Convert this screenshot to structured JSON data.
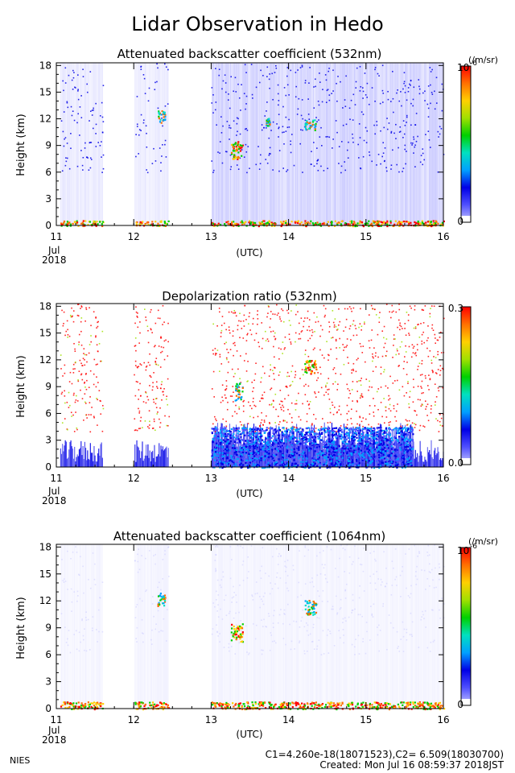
{
  "figure": {
    "title": "Lidar Observation in Hedo",
    "footer_left": "NIES",
    "footer_calib": "C1=4.260e-18(18071523),C2= 6.509(18030700)",
    "footer_created": "Created: Mon Jul 16 08:59:37 2018JST"
  },
  "colors": {
    "scale": [
      "#ffffff",
      "#c8c8ff",
      "#5050ff",
      "#0000e6",
      "#00a0ff",
      "#00e0c0",
      "#00d000",
      "#a0e000",
      "#ffd000",
      "#ff7000",
      "#ff0000"
    ],
    "frame": "#000000"
  },
  "chart_data": [
    {
      "type": "heatmap",
      "title": "Attenuated backscatter coefficient (532nm)",
      "ylabel": "Height (km)",
      "xlabel": "(UTC)",
      "x_ticks": [
        "11",
        "12",
        "13",
        "14",
        "15",
        "16"
      ],
      "x_sub_label": "Jul",
      "x_year_label": "2018",
      "xlim": [
        11,
        16
      ],
      "y_ticks": [
        "0",
        "3",
        "6",
        "9",
        "12",
        "15",
        "18"
      ],
      "ylim": [
        0,
        18.3
      ],
      "colorbar": {
        "min_label": "0",
        "max_label": "10",
        "unit": "(/m/sr)",
        "max_superscript": "-6"
      },
      "data_gaps": [
        [
          11.6,
          12.0
        ],
        [
          12.45,
          13.0
        ]
      ],
      "features": [
        {
          "name": "surface layer",
          "x": [
            11.05,
            16.0
          ],
          "y": [
            0,
            0.6
          ],
          "level": "high"
        },
        {
          "name": "cloud",
          "x": [
            13.25,
            13.4
          ],
          "y": [
            7.5,
            9.5
          ],
          "level": "high"
        },
        {
          "name": "cloud",
          "x": [
            14.2,
            14.35
          ],
          "y": [
            10.8,
            12.0
          ],
          "level": "medium"
        },
        {
          "name": "cloud",
          "x": [
            12.3,
            12.4
          ],
          "y": [
            11.5,
            13.0
          ],
          "level": "medium"
        },
        {
          "name": "cloud",
          "x": [
            13.7,
            13.75
          ],
          "y": [
            11.3,
            12.1
          ],
          "level": "medium"
        }
      ]
    },
    {
      "type": "heatmap",
      "title": "Depolarization ratio (532nm)",
      "ylabel": "Height (km)",
      "xlabel": "(UTC)",
      "x_ticks": [
        "11",
        "12",
        "13",
        "14",
        "15",
        "16"
      ],
      "x_sub_label": "Jul",
      "x_year_label": "2018",
      "xlim": [
        11,
        16
      ],
      "y_ticks": [
        "0",
        "3",
        "6",
        "9",
        "12",
        "15",
        "18"
      ],
      "ylim": [
        0,
        18.3
      ],
      "colorbar": {
        "min_label": "0.0",
        "max_label": "0.3"
      },
      "data_gaps": [
        [
          11.6,
          12.0
        ],
        [
          12.45,
          13.0
        ]
      ],
      "features": [
        {
          "name": "low depolarization layer",
          "x": [
            13.0,
            15.6
          ],
          "y": [
            0,
            4.5
          ],
          "level": "low"
        },
        {
          "name": "cloud",
          "x": [
            14.2,
            14.35
          ],
          "y": [
            10.5,
            12.0
          ],
          "level": "high"
        },
        {
          "name": "cloud",
          "x": [
            13.3,
            13.4
          ],
          "y": [
            7.5,
            9.5
          ],
          "level": "medium"
        }
      ]
    },
    {
      "type": "heatmap",
      "title": "Attenuated backscatter coefficient (1064nm)",
      "ylabel": "Height (km)",
      "xlabel": "(UTC)",
      "x_ticks": [
        "11",
        "12",
        "13",
        "14",
        "15",
        "16"
      ],
      "x_sub_label": "Jul",
      "x_year_label": "2018",
      "xlim": [
        11,
        16
      ],
      "y_ticks": [
        "0",
        "3",
        "6",
        "9",
        "12",
        "15",
        "18"
      ],
      "ylim": [
        0,
        18.3
      ],
      "colorbar": {
        "min_label": "0",
        "max_label": "10",
        "unit": "(/m/sr)",
        "max_superscript": "-6"
      },
      "data_gaps": [
        [
          11.6,
          12.0
        ],
        [
          12.45,
          13.0
        ]
      ],
      "features": [
        {
          "name": "surface layer",
          "x": [
            11.05,
            16.0
          ],
          "y": [
            0,
            0.8
          ],
          "level": "high"
        },
        {
          "name": "cloud",
          "x": [
            13.25,
            13.4
          ],
          "y": [
            7.5,
            9.5
          ],
          "level": "high"
        },
        {
          "name": "cloud",
          "x": [
            14.2,
            14.35
          ],
          "y": [
            10.5,
            12.2
          ],
          "level": "medium"
        },
        {
          "name": "cloud",
          "x": [
            12.3,
            12.4
          ],
          "y": [
            11.5,
            13.0
          ],
          "level": "medium"
        }
      ]
    }
  ]
}
